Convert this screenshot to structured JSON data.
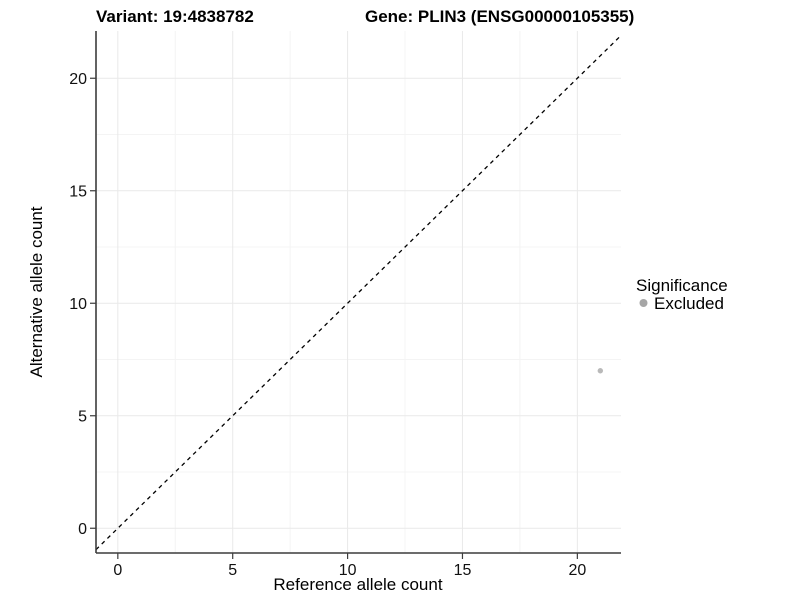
{
  "figure": {
    "title_left": "Variant: 19:4838782",
    "title_right": "Gene: PLIN3 (ENSG00000105355)"
  },
  "axes": {
    "x": {
      "label": "Reference allele count"
    },
    "y": {
      "label": "Alternative allele count"
    }
  },
  "legend": {
    "title": "Significance",
    "items": [
      {
        "label": "Excluded",
        "color": "#a6a6a6",
        "marker": "circle"
      }
    ]
  },
  "chart_data": {
    "type": "scatter",
    "title": "Variant: 19:4838782 | Gene: PLIN3 (ENSG00000105355)",
    "xlabel": "Reference allele count",
    "ylabel": "Alternative allele count",
    "xlim": [
      -0.95,
      21.9
    ],
    "ylim": [
      -1.1,
      22.1
    ],
    "x_ticks": [
      0,
      5,
      10,
      15,
      20
    ],
    "y_ticks": [
      0,
      5,
      10,
      15,
      20
    ],
    "x_minor_ticks": [
      2.5,
      7.5,
      12.5,
      17.5
    ],
    "y_minor_ticks": [
      2.5,
      7.5,
      12.5,
      17.5
    ],
    "grid": "major and minor, very light gray, white background",
    "legend_position": "right",
    "series": [
      {
        "name": "Excluded",
        "color": "#b9b9b9",
        "points": [
          {
            "x": 21,
            "y": 7
          }
        ]
      }
    ],
    "reference_line": {
      "type": "identity",
      "slope": 1,
      "intercept": 0,
      "style": "dashed",
      "color": "#000000"
    }
  },
  "colors": {
    "axis_line": "#3c3c3c",
    "major_grid": "#e9e9e9",
    "minor_grid": "#f4f4f4",
    "point_gray": "#b9b9b9",
    "legend_gray": "#a6a6a6",
    "dashed_line": "#000000"
  }
}
